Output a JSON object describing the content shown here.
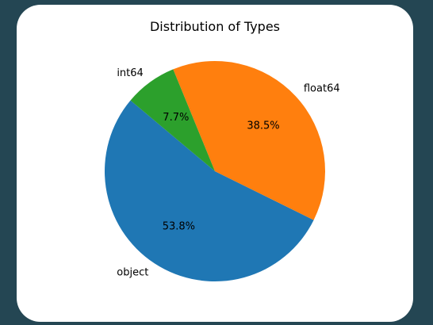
{
  "chart_data": {
    "type": "pie",
    "title": "Distribution of Types",
    "slices": [
      {
        "label": "object",
        "value": 53.8,
        "pct_label": "53.8%",
        "color": "#1f77b4"
      },
      {
        "label": "float64",
        "value": 38.5,
        "pct_label": "38.5%",
        "color": "#ff7f0e"
      },
      {
        "label": "int64",
        "value": 7.7,
        "pct_label": "7.7%",
        "color": "#2ca02c"
      }
    ],
    "start_angle_deg": 140,
    "legend": "none"
  }
}
